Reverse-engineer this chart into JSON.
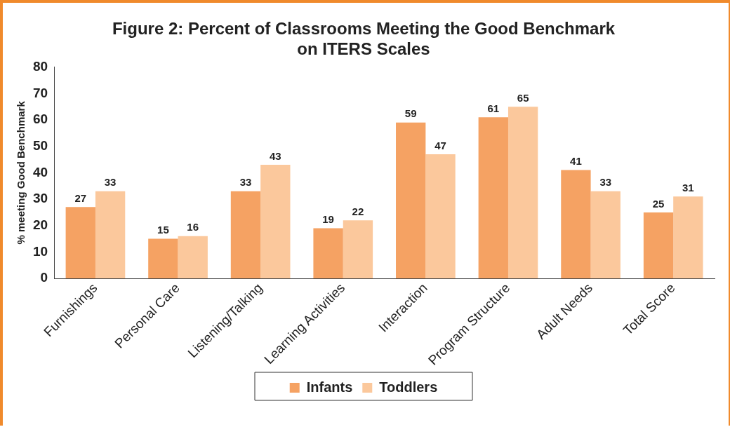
{
  "chart_data": {
    "type": "bar",
    "title": [
      "Figure 2: Percent of Classrooms Meeting the Good Benchmark",
      "on ITERS Scales"
    ],
    "ylabel": "% meeting Good Benchmark",
    "categories": [
      "Furnishings",
      "Personal Care",
      "Listening/Talking",
      "Learning Activities",
      "Interaction",
      "Program Structure",
      "Adult Needs",
      "Total Score"
    ],
    "series": [
      {
        "name": "Infants",
        "color": "#f5a263",
        "values": [
          27,
          15,
          33,
          19,
          59,
          61,
          41,
          25
        ]
      },
      {
        "name": "Toddlers",
        "color": "#fbc89c",
        "values": [
          33,
          16,
          43,
          22,
          47,
          65,
          33,
          31
        ]
      }
    ],
    "ylim": [
      0,
      80
    ],
    "yticks": [
      0,
      10,
      20,
      30,
      40,
      50,
      60,
      70,
      80
    ],
    "grid": false,
    "legend": "bottom",
    "data_labels": true
  }
}
